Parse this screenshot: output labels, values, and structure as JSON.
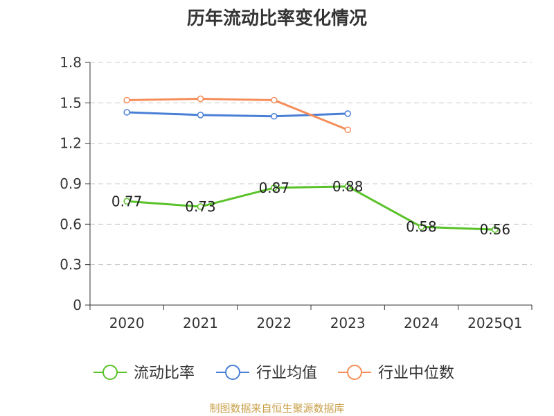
{
  "title": "历年流动比率变化情况",
  "source": "制图数据来自恒生聚源数据库",
  "chart_data": {
    "type": "line",
    "categories": [
      "2020",
      "2021",
      "2022",
      "2023",
      "2024",
      "2025Q1"
    ],
    "ylim": [
      0,
      1.8
    ],
    "yticks": [
      0,
      0.3,
      0.6,
      0.9,
      1.2,
      1.5,
      1.8
    ],
    "ytick_labels": [
      "0",
      "0.3",
      "0.6",
      "0.9",
      "1.2",
      "1.5",
      "1.8"
    ],
    "grid": true,
    "legend_position": "bottom",
    "series": [
      {
        "name": "流动比率",
        "color": "#5ac229",
        "values": [
          0.77,
          0.73,
          0.87,
          0.88,
          0.58,
          0.56
        ],
        "labels": [
          "0.77",
          "0.73",
          "0.87",
          "0.88",
          "0.58",
          "0.56"
        ]
      },
      {
        "name": "行业均值",
        "color": "#4a7fd6",
        "values": [
          1.43,
          1.41,
          1.4,
          1.42,
          null,
          null
        ]
      },
      {
        "name": "行业中位数",
        "color": "#f58e5a",
        "values": [
          1.52,
          1.53,
          1.52,
          1.3,
          null,
          null
        ]
      }
    ]
  }
}
